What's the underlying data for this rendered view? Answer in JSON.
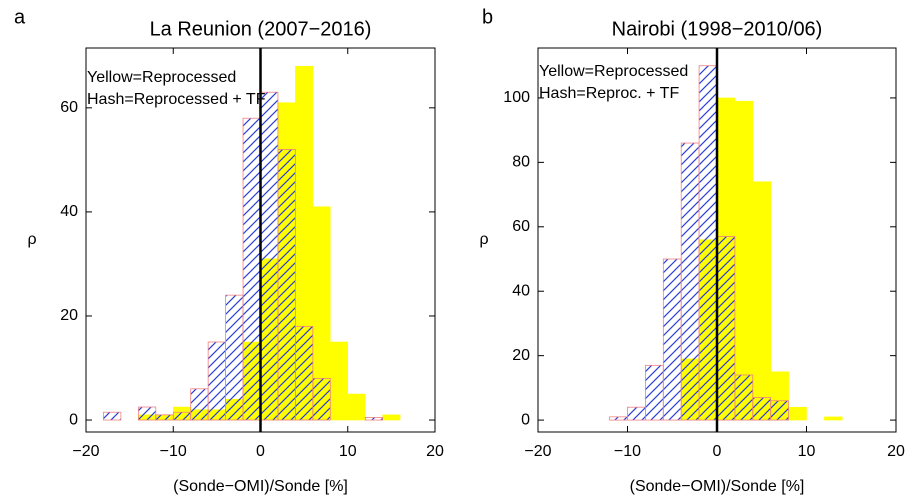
{
  "chart_data": [
    {
      "type": "histogram",
      "panel_label": "a",
      "title": "La Reunion (2007−2016)",
      "xlabel": "(Sonde−OMI)/Sonde [%]",
      "ylabel": "ρ",
      "annotations": [
        "Yellow=Reprocessed",
        "Hash=Reprocessed + TF"
      ],
      "bins": [
        -20,
        -18,
        -16,
        -14,
        -12,
        -10,
        -8,
        -6,
        -4,
        -2,
        0,
        2,
        4,
        6,
        8,
        10,
        12,
        14,
        16,
        18,
        20
      ],
      "series": [
        {
          "color": "#ffff00",
          "pattern": "solid",
          "values": [
            0,
            0,
            0,
            1,
            1,
            2.5,
            2,
            2,
            4,
            15,
            31,
            61,
            68,
            41,
            15,
            5,
            0,
            1,
            0,
            0
          ]
        },
        {
          "color": "#2b3fd6",
          "pattern": "hatch",
          "values": [
            0,
            1.5,
            0,
            2.5,
            1,
            1.5,
            6,
            15,
            24,
            58,
            63,
            52,
            18,
            8,
            0,
            0,
            0.5,
            0,
            0,
            0
          ]
        }
      ],
      "reference_line_x": 0,
      "xlim": [
        -20,
        20
      ],
      "ylim": [
        -2.3,
        71.5
      ],
      "xticks": [
        {
          "value": -20,
          "label": "−20"
        },
        {
          "value": -10,
          "label": "−10"
        },
        0,
        10,
        20
      ],
      "yticks": [
        0,
        20,
        40,
        60
      ],
      "grid": false
    },
    {
      "type": "histogram",
      "panel_label": "b",
      "title": "Nairobi (1998−2010/06)",
      "xlabel": "(Sonde−OMI)/Sonde [%]",
      "ylabel": "ρ",
      "annotations": [
        "Yellow=Reprocessed",
        "Hash=Reproc. + TF"
      ],
      "bins": [
        -20,
        -18,
        -16,
        -14,
        -12,
        -10,
        -8,
        -6,
        -4,
        -2,
        0,
        2,
        4,
        6,
        8,
        10,
        12,
        14,
        16,
        18,
        20
      ],
      "series": [
        {
          "color": "#ffff00",
          "pattern": "solid",
          "values": [
            0,
            0,
            0,
            0,
            0,
            0,
            0,
            0,
            19,
            56,
            100,
            99,
            74,
            15,
            4,
            0,
            1,
            0,
            0,
            0
          ]
        },
        {
          "color": "#2b3fd6",
          "pattern": "hatch",
          "values": [
            0,
            0,
            0,
            0,
            1,
            4,
            17,
            50,
            86,
            110,
            57,
            14,
            7,
            6,
            0,
            0,
            0,
            0,
            0,
            0
          ]
        }
      ],
      "reference_line_x": 0,
      "xlim": [
        -20,
        20
      ],
      "ylim": [
        -3.7,
        115.5
      ],
      "xticks": [
        {
          "value": -20,
          "label": "−20"
        },
        {
          "value": -10,
          "label": "−10"
        },
        0,
        10,
        20
      ],
      "yticks": [
        0,
        20,
        40,
        60,
        80,
        100
      ],
      "grid": false
    }
  ]
}
